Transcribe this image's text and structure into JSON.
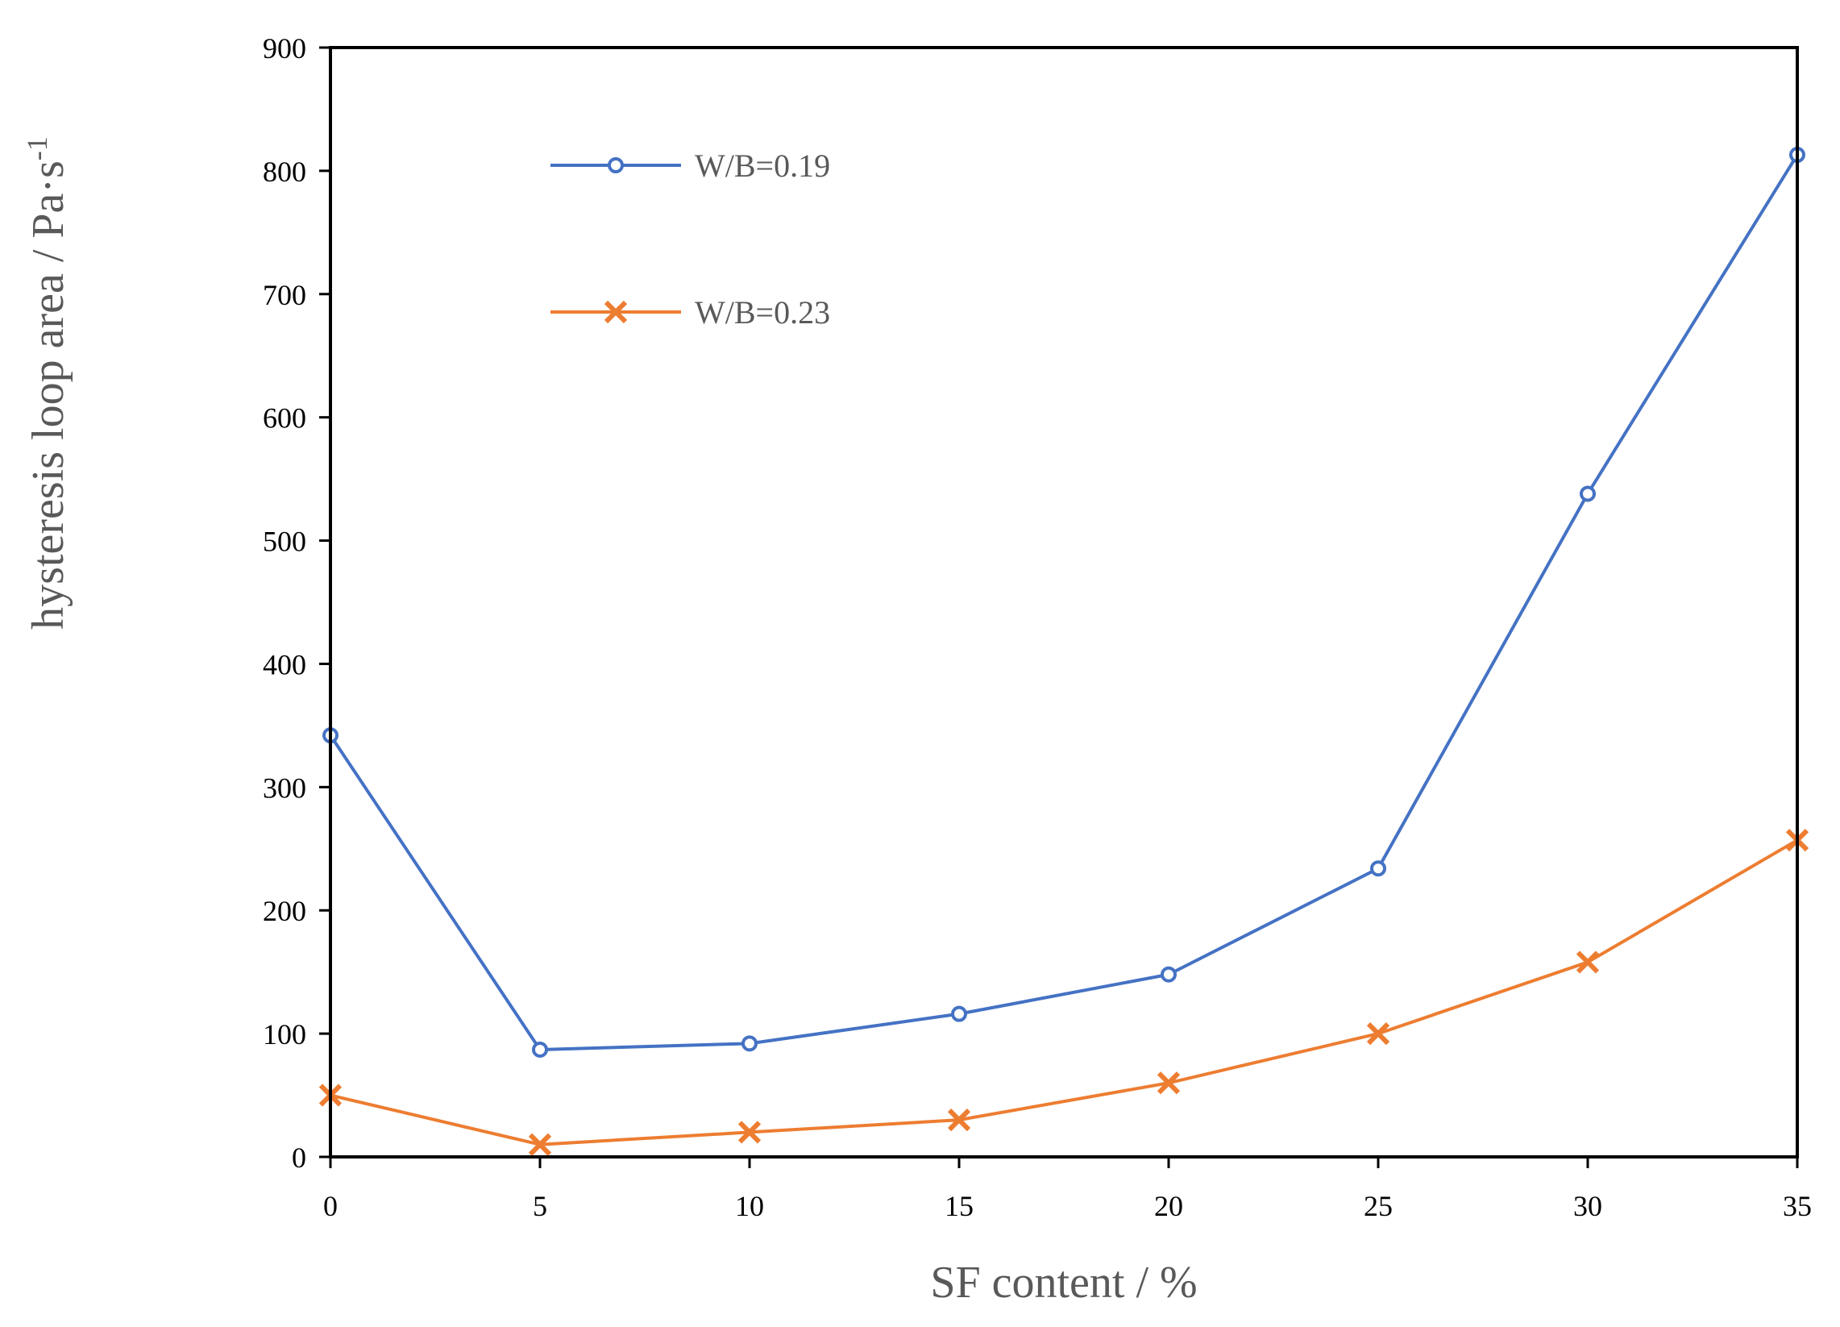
{
  "chart_data": {
    "type": "line",
    "title": "",
    "xlabel": "SF content / %",
    "ylabel": "hysteresis loop area / Pa·s",
    "ylabel_superscript": "-1",
    "x": [
      0,
      5,
      10,
      15,
      20,
      25,
      30,
      35
    ],
    "xlim": [
      0,
      35
    ],
    "ylim": [
      0,
      900
    ],
    "xticks": [
      "0",
      "5",
      "10",
      "15",
      "20",
      "25",
      "30",
      "35"
    ],
    "yticks": [
      "0",
      "100",
      "200",
      "300",
      "400",
      "500",
      "600",
      "700",
      "800",
      "900"
    ],
    "grid": false,
    "legend_position": "top-left",
    "series": [
      {
        "name": "W/B=0.19",
        "color": "#4472c4",
        "marker": "circle",
        "values": [
          342,
          87,
          92,
          116,
          148,
          234,
          538,
          813
        ]
      },
      {
        "name": "W/B=0.23",
        "color": "#ed7d31",
        "marker": "x",
        "values": [
          50,
          10,
          20,
          30,
          60,
          100,
          158,
          257
        ]
      }
    ]
  }
}
